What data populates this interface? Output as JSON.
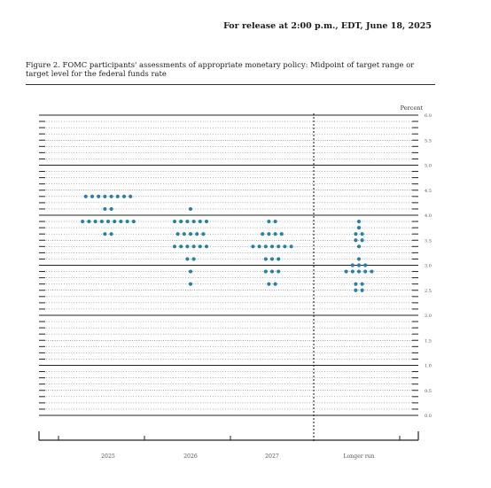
{
  "header": {
    "release": "For release at 2:00 p.m., EDT, June 18, 2025",
    "figure_caption": "Figure 2.  FOMC participants' assessments of appropriate monetary policy: Midpoint of target range or target level for the federal funds rate"
  },
  "colors": {
    "dot": "#2a7fa4",
    "axis": "#222222",
    "grid": "#444444",
    "text": "#555555"
  },
  "chart_data": {
    "type": "scatter",
    "title": "",
    "ylabel": "Percent",
    "ylim": [
      0.0,
      6.0
    ],
    "grid": true,
    "y_ticks": [
      "0.0",
      "0.5",
      "1.0",
      "1.5",
      "2.0",
      "2.5",
      "3.0",
      "3.5",
      "4.0",
      "4.5",
      "5.0",
      "5.5",
      "6.0"
    ],
    "categories": [
      "2025",
      "2026",
      "2027",
      "Longer run"
    ],
    "dot_plot": [
      {
        "category": "2025",
        "points": [
          {
            "y": 4.375,
            "count": 8
          },
          {
            "y": 4.125,
            "count": 2
          },
          {
            "y": 3.875,
            "count": 9
          },
          {
            "y": 3.625,
            "count": 2
          }
        ]
      },
      {
        "category": "2026",
        "points": [
          {
            "y": 4.125,
            "count": 1
          },
          {
            "y": 3.875,
            "count": 6
          },
          {
            "y": 3.625,
            "count": 5
          },
          {
            "y": 3.375,
            "count": 6
          },
          {
            "y": 3.125,
            "count": 2
          },
          {
            "y": 2.875,
            "count": 1
          },
          {
            "y": 2.625,
            "count": 1
          }
        ]
      },
      {
        "category": "2027",
        "points": [
          {
            "y": 3.875,
            "count": 2
          },
          {
            "y": 3.625,
            "count": 4
          },
          {
            "y": 3.375,
            "count": 7
          },
          {
            "y": 3.125,
            "count": 3
          },
          {
            "y": 2.875,
            "count": 3
          },
          {
            "y": 2.625,
            "count": 2
          }
        ]
      },
      {
        "category": "Longer run",
        "points": [
          {
            "y": 3.875,
            "count": 1
          },
          {
            "y": 3.75,
            "count": 1
          },
          {
            "y": 3.625,
            "count": 2
          },
          {
            "y": 3.5,
            "count": 2
          },
          {
            "y": 3.375,
            "count": 1
          },
          {
            "y": 3.125,
            "count": 1
          },
          {
            "y": 3.0,
            "count": 3
          },
          {
            "y": 2.875,
            "count": 5
          },
          {
            "y": 2.625,
            "count": 2
          },
          {
            "y": 2.5,
            "count": 2
          }
        ]
      }
    ]
  }
}
